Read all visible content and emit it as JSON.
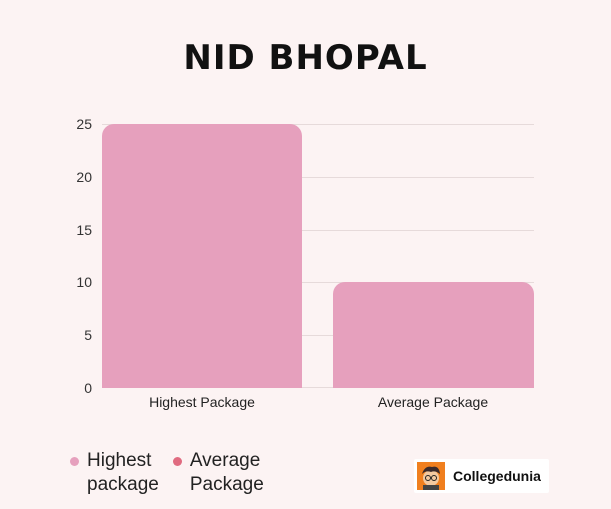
{
  "title": "NID BHOPAL",
  "chart_data": {
    "type": "bar",
    "title": "NID BHOPAL",
    "categories": [
      "Highest Package",
      "Average Package"
    ],
    "series": [
      {
        "name": "Highest package",
        "values": [
          25,
          null
        ],
        "color": "#e6a0bd"
      },
      {
        "name": "Average Package",
        "values": [
          null,
          10
        ],
        "color": "#e06b80"
      }
    ],
    "values": [
      25,
      10
    ],
    "xlabel": "",
    "ylabel": "",
    "ylim": [
      0,
      25
    ],
    "yticks": [
      "0",
      "5",
      "10",
      "15",
      "20",
      "25"
    ],
    "grid": true,
    "legend_position": "bottom-left"
  },
  "legend": [
    {
      "line1": "Highest",
      "line2": "package",
      "color": "#e6a0bd"
    },
    {
      "line1": "Average",
      "line2": "Package",
      "color": "#e06b80"
    }
  ],
  "brand": {
    "name": "Collegedunia",
    "icon": "mascot-icon"
  }
}
